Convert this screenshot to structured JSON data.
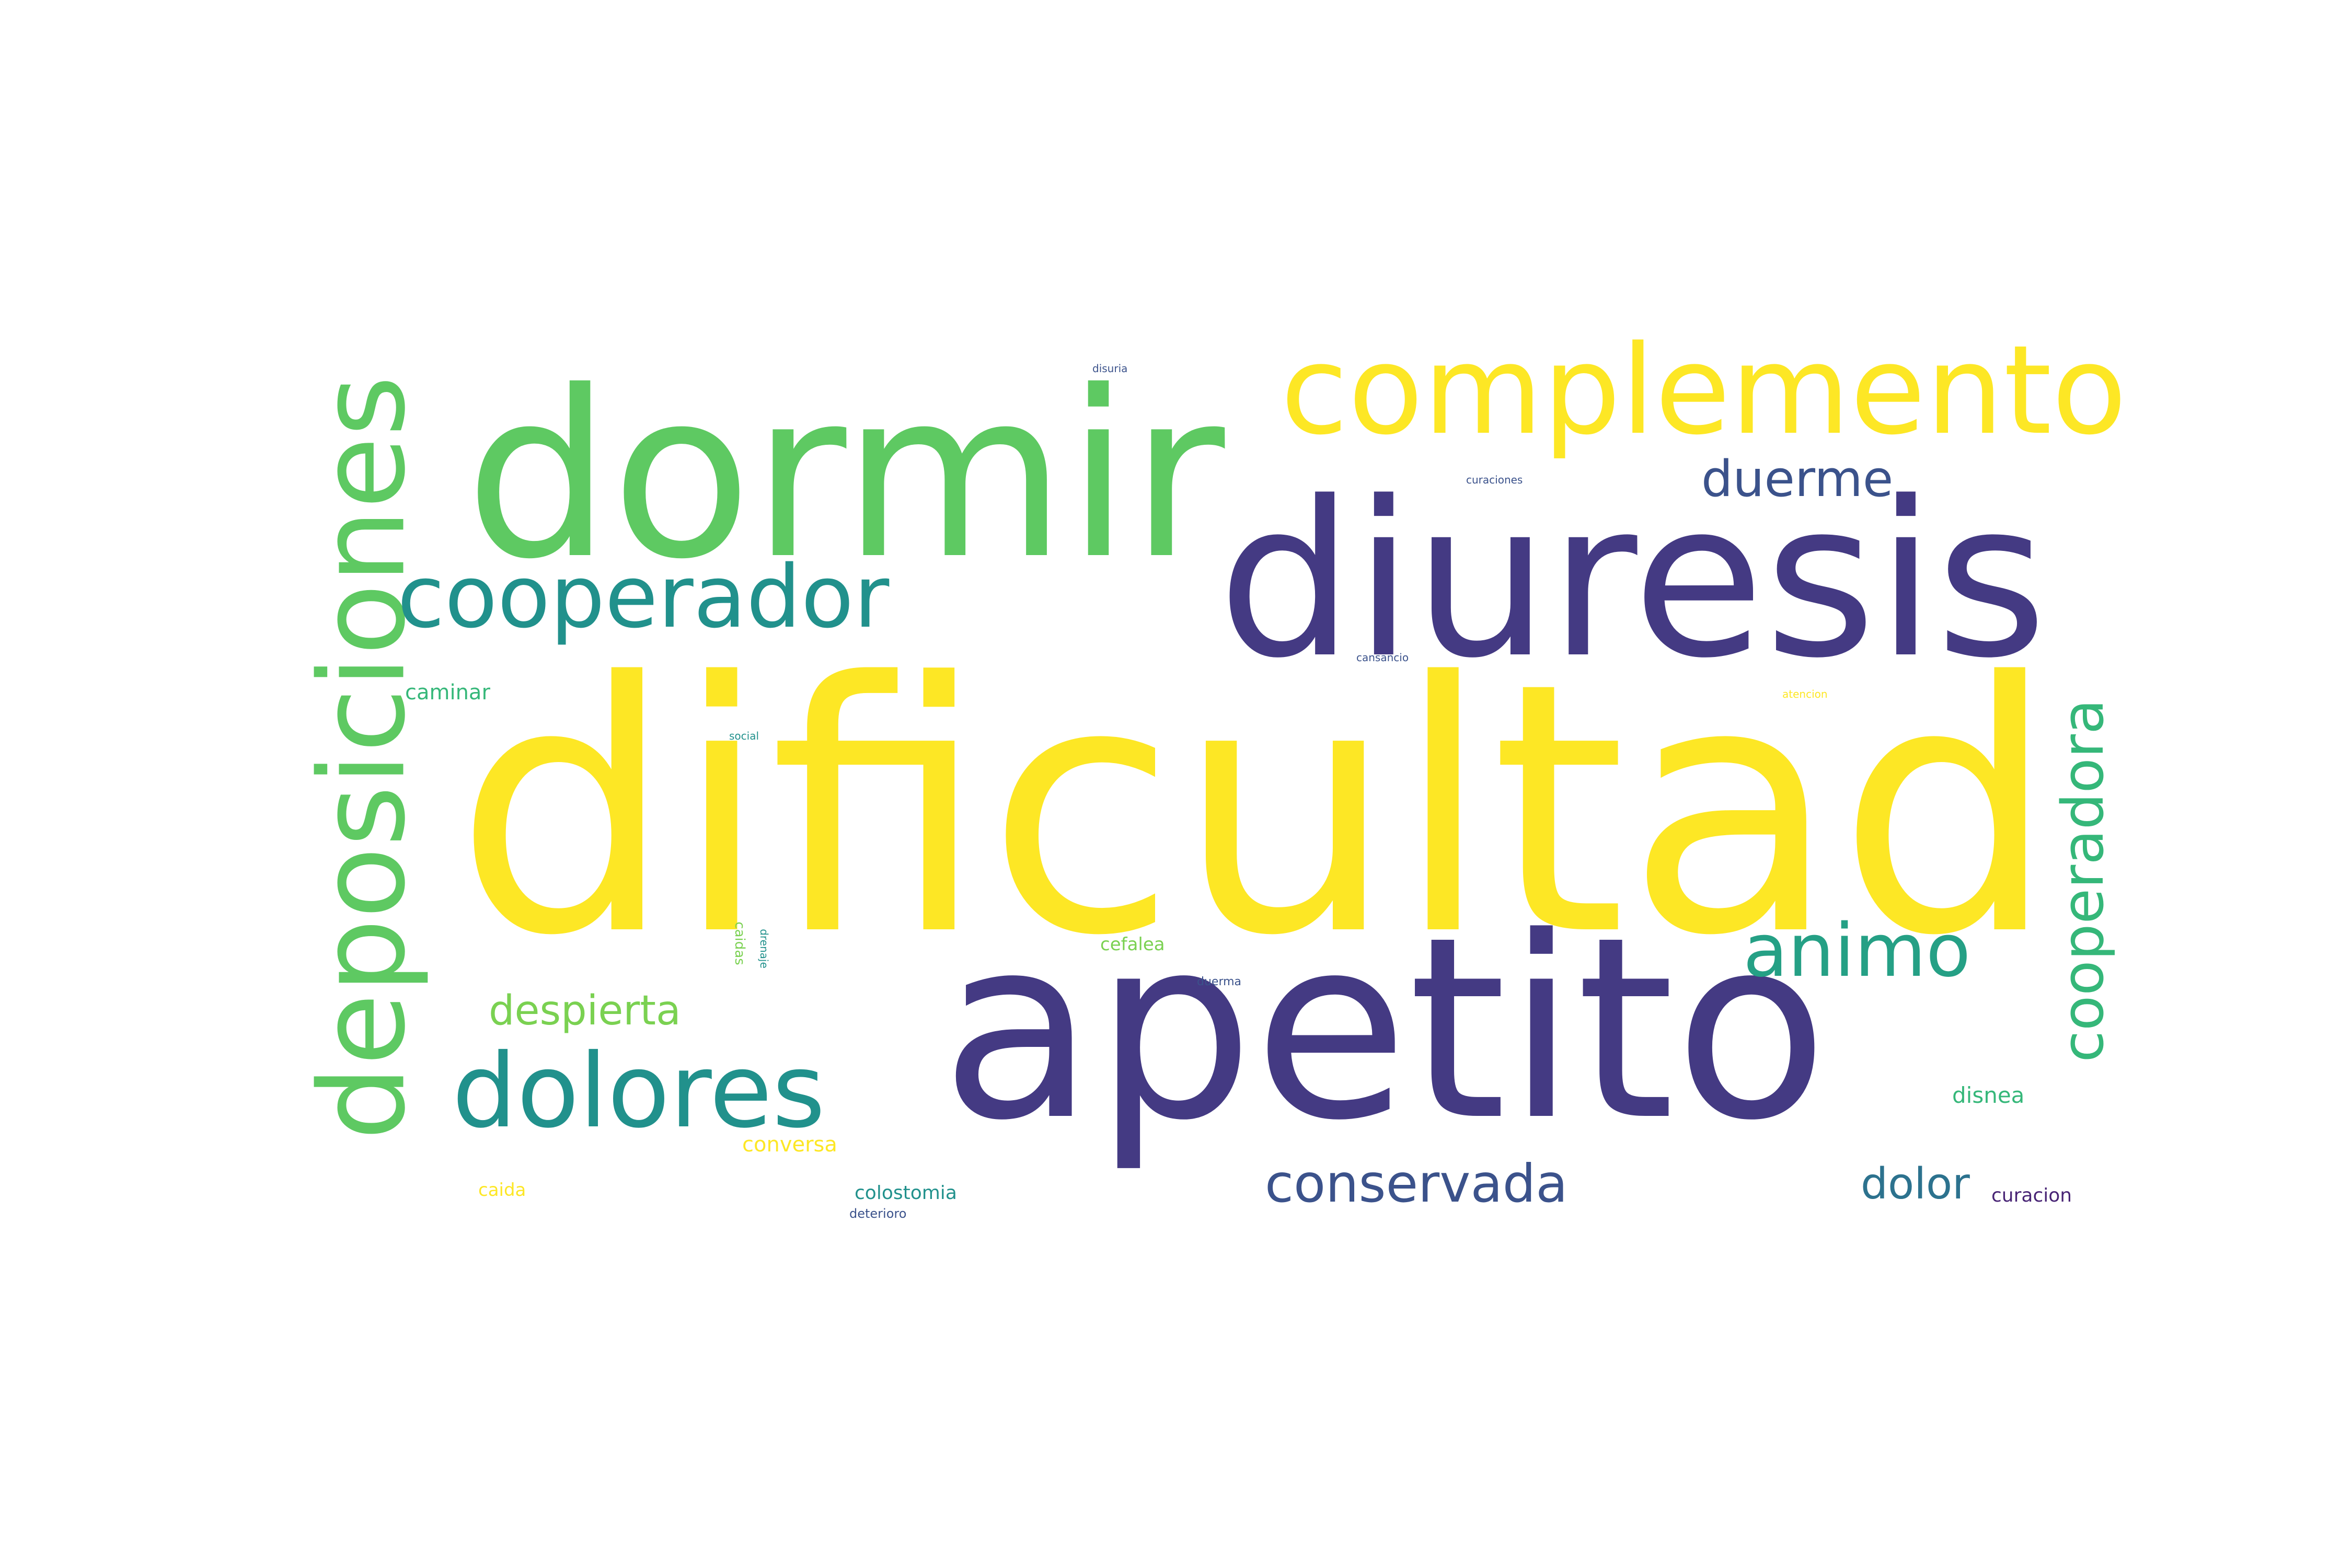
{
  "palette": {
    "yellow": "#fde725",
    "green": "#5ec962",
    "light_green": "#7ad151",
    "teal": "#21918c",
    "teal_green": "#25a085",
    "sea_green": "#35b779",
    "blue_teal": "#2c728e",
    "indigo": "#443a83",
    "slate_blue": "#3b528b",
    "purple": "#482475",
    "background": "#ffffff"
  },
  "words": [
    {
      "text": "dificultad",
      "color": "yellow"
    },
    {
      "text": "dormir",
      "color": "green"
    },
    {
      "text": "diuresis",
      "color": "indigo"
    },
    {
      "text": "apetito",
      "color": "indigo"
    },
    {
      "text": "complemento",
      "color": "yellow"
    },
    {
      "text": "deposiciones",
      "color": "green"
    },
    {
      "text": "cooperador",
      "color": "teal"
    },
    {
      "text": "dolores",
      "color": "teal"
    },
    {
      "text": "animo",
      "color": "teal_green"
    },
    {
      "text": "cooperadora",
      "color": "sea_green"
    },
    {
      "text": "conservada",
      "color": "slate_blue"
    },
    {
      "text": "duerme",
      "color": "slate_blue"
    },
    {
      "text": "despierta",
      "color": "light_green"
    },
    {
      "text": "dolor",
      "color": "blue_teal"
    },
    {
      "text": "curacion",
      "color": "purple"
    },
    {
      "text": "disnea",
      "color": "sea_green"
    },
    {
      "text": "caminar",
      "color": "sea_green"
    },
    {
      "text": "conversa",
      "color": "yellow"
    },
    {
      "text": "colostomia",
      "color": "teal"
    },
    {
      "text": "caida",
      "color": "yellow"
    },
    {
      "text": "cefalea",
      "color": "light_green"
    },
    {
      "text": "deterioro",
      "color": "slate_blue"
    },
    {
      "text": "disuria",
      "color": "slate_blue"
    },
    {
      "text": "curaciones",
      "color": "slate_blue"
    },
    {
      "text": "cansancio",
      "color": "slate_blue"
    },
    {
      "text": "atencion",
      "color": "yellow"
    },
    {
      "text": "social",
      "color": "teal"
    },
    {
      "text": "caidas",
      "color": "light_green"
    },
    {
      "text": "drenaje",
      "color": "teal"
    },
    {
      "text": "duerma",
      "color": "slate_blue"
    }
  ]
}
